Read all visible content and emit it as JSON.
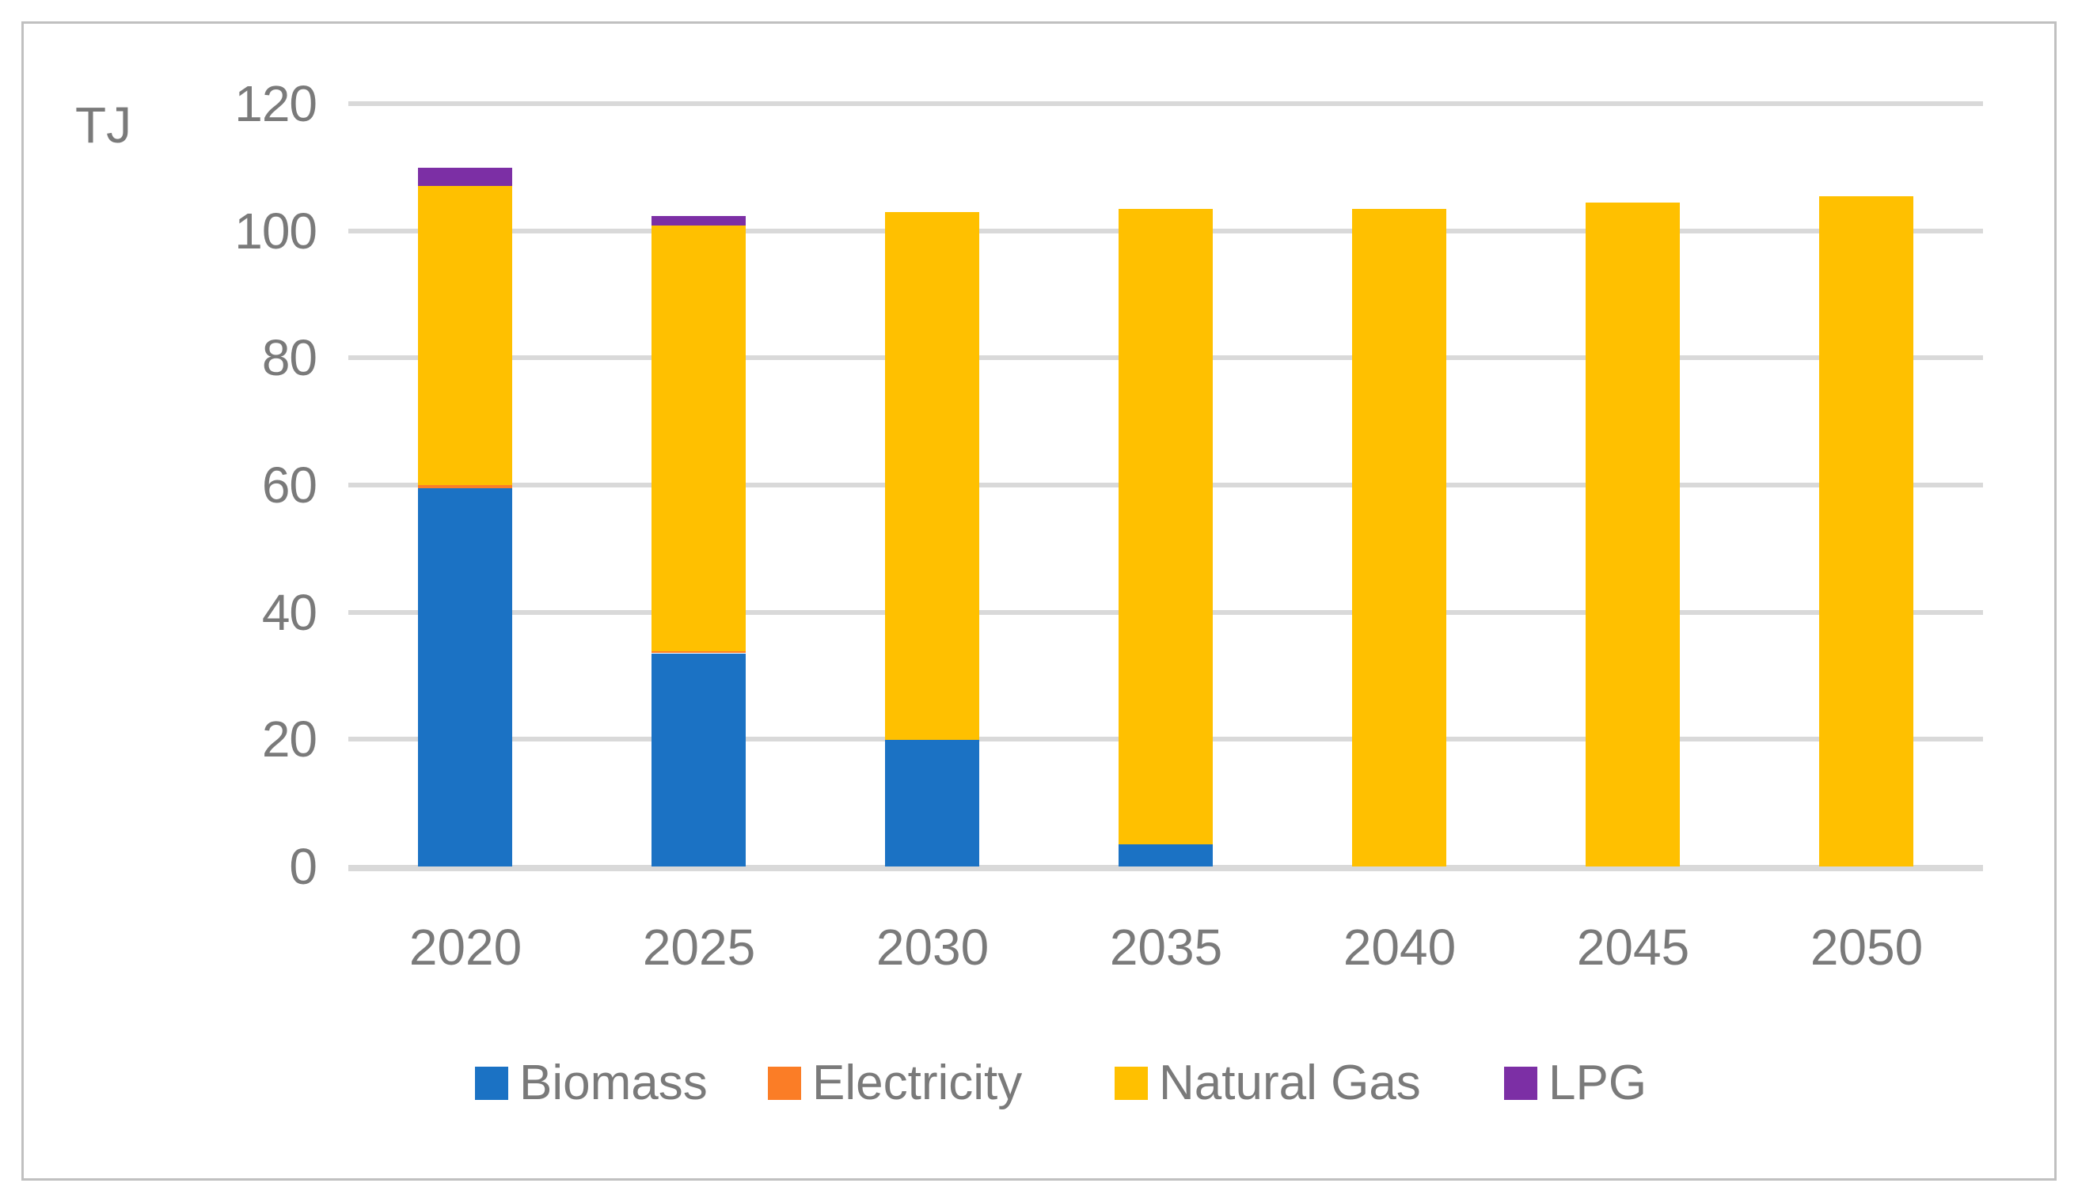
{
  "page": {
    "background_color": "#FFFFFF",
    "frame_border_color": "#C0C0C0"
  },
  "chart_data": {
    "type": "bar",
    "stacked": true,
    "title": "",
    "unit_label": "TJ",
    "categories": [
      "2020",
      "2025",
      "2030",
      "2035",
      "2040",
      "2045",
      "2050"
    ],
    "series": [
      {
        "name": "Biomass",
        "color": "#1B72C4",
        "values": [
          59.5,
          33.5,
          20,
          3.5,
          0,
          0,
          0
        ]
      },
      {
        "name": "Electricity",
        "color": "#FB7D26",
        "values": [
          0.5,
          0.3,
          0,
          0,
          0,
          0,
          0
        ]
      },
      {
        "name": "Natural Gas",
        "color": "#FFC000",
        "values": [
          47,
          67,
          83,
          100,
          103.5,
          104.5,
          105.5
        ]
      },
      {
        "name": "LPG",
        "color": "#7C2FA5",
        "values": [
          2.9,
          1.5,
          0,
          0,
          0,
          0,
          0
        ]
      }
    ],
    "totals": [
      109.9,
      102.3,
      103,
      103.5,
      103.5,
      104.5,
      105.5
    ],
    "xlabel": "",
    "ylabel": "TJ",
    "ylim": [
      0,
      120
    ],
    "yticks": [
      0,
      20,
      40,
      60,
      80,
      100,
      120
    ],
    "grid": true,
    "gridline_color": "#D9D9D9",
    "axis_text_color": "#7A7A7A",
    "legend_position": "bottom",
    "legend_entries": [
      "Biomass",
      "Electricity",
      "Natural Gas",
      "LPG"
    ]
  }
}
